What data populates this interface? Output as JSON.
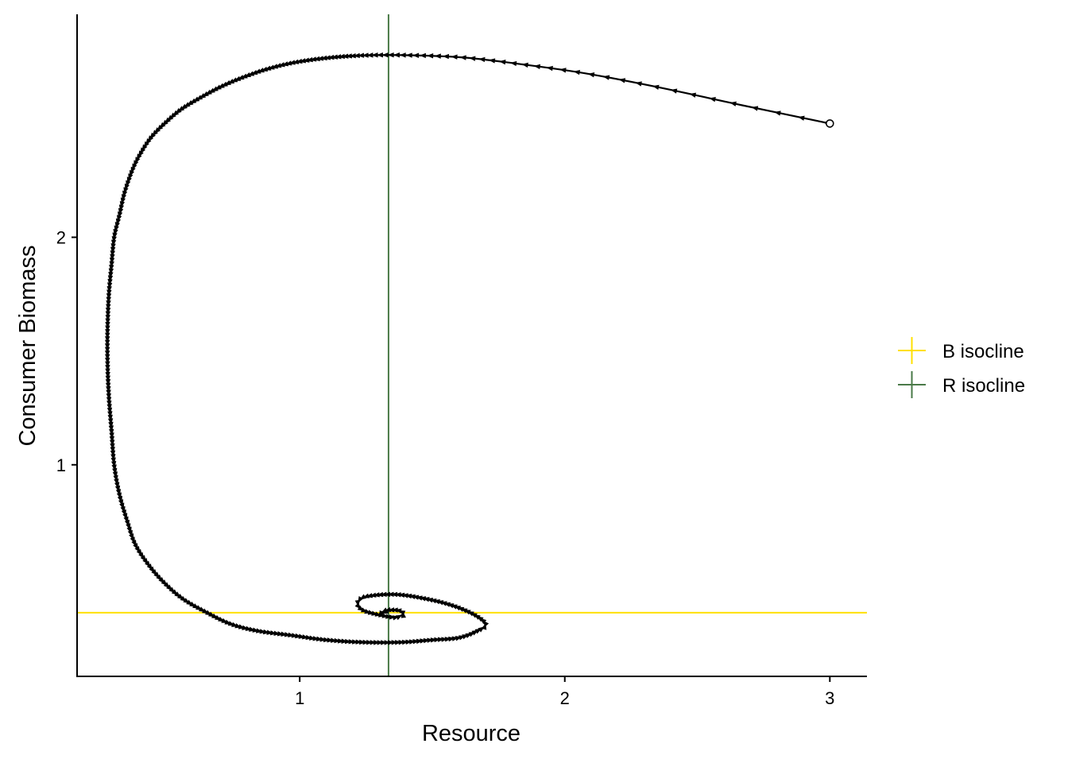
{
  "chart_data": {
    "type": "line",
    "xlabel": "Resource",
    "ylabel": "Consumer Biomass",
    "xlim": [
      0.16,
      3.14
    ],
    "ylim": [
      0.07,
      2.98
    ],
    "x_ticks": [
      1,
      2,
      3
    ],
    "y_ticks": [
      1,
      2
    ],
    "x_tick_labels": [
      "1",
      "2",
      "3"
    ],
    "y_tick_labels": [
      "1",
      "2"
    ],
    "grid": false,
    "legend_position": "right",
    "legend": [
      {
        "label": "B isocline",
        "color": "#FFE000"
      },
      {
        "label": "R isocline",
        "color": "#4A7A48"
      }
    ],
    "isoclines": {
      "B": {
        "orientation": "horizontal",
        "value": 0.35,
        "color": "#FFE000"
      },
      "R": {
        "orientation": "vertical",
        "value": 1.335,
        "color": "#4A7A48"
      }
    },
    "trajectory": {
      "name": "",
      "start": {
        "x": 3.0,
        "y": 2.5
      },
      "color": "#000000",
      "points": [
        [
          3.0,
          2.5
        ],
        [
          2.67,
          2.58
        ],
        [
          2.35,
          2.66
        ],
        [
          2.08,
          2.72
        ],
        [
          1.84,
          2.76
        ],
        [
          1.62,
          2.79
        ],
        [
          1.42,
          2.8
        ],
        [
          1.26,
          2.8
        ],
        [
          1.12,
          2.79
        ],
        [
          0.99,
          2.77
        ],
        [
          0.88,
          2.74
        ],
        [
          0.78,
          2.7
        ],
        [
          0.7,
          2.66
        ],
        [
          0.62,
          2.61
        ],
        [
          0.55,
          2.56
        ],
        [
          0.49,
          2.5
        ],
        [
          0.44,
          2.44
        ],
        [
          0.4,
          2.37
        ],
        [
          0.37,
          2.3
        ],
        [
          0.34,
          2.2
        ],
        [
          0.32,
          2.1
        ],
        [
          0.3,
          2.0
        ],
        [
          0.29,
          1.88
        ],
        [
          0.28,
          1.75
        ],
        [
          0.275,
          1.6
        ],
        [
          0.275,
          1.45
        ],
        [
          0.28,
          1.3
        ],
        [
          0.29,
          1.15
        ],
        [
          0.3,
          1.0
        ],
        [
          0.32,
          0.87
        ],
        [
          0.35,
          0.75
        ],
        [
          0.38,
          0.65
        ],
        [
          0.43,
          0.56
        ],
        [
          0.49,
          0.48
        ],
        [
          0.56,
          0.41
        ],
        [
          0.65,
          0.35
        ],
        [
          0.74,
          0.3
        ],
        [
          0.84,
          0.27
        ],
        [
          0.97,
          0.25
        ],
        [
          1.1,
          0.23
        ],
        [
          1.24,
          0.22
        ],
        [
          1.38,
          0.22
        ],
        [
          1.5,
          0.23
        ],
        [
          1.6,
          0.24
        ],
        [
          1.67,
          0.27
        ],
        [
          1.7,
          0.3
        ],
        [
          1.66,
          0.34
        ],
        [
          1.58,
          0.38
        ],
        [
          1.48,
          0.41
        ],
        [
          1.36,
          0.43
        ],
        [
          1.25,
          0.42
        ],
        [
          1.22,
          0.39
        ],
        [
          1.24,
          0.36
        ],
        [
          1.3,
          0.34
        ],
        [
          1.36,
          0.33
        ],
        [
          1.39,
          0.345
        ],
        [
          1.37,
          0.36
        ],
        [
          1.33,
          0.36
        ],
        [
          1.31,
          0.35
        ],
        [
          1.335,
          0.35
        ]
      ]
    }
  }
}
